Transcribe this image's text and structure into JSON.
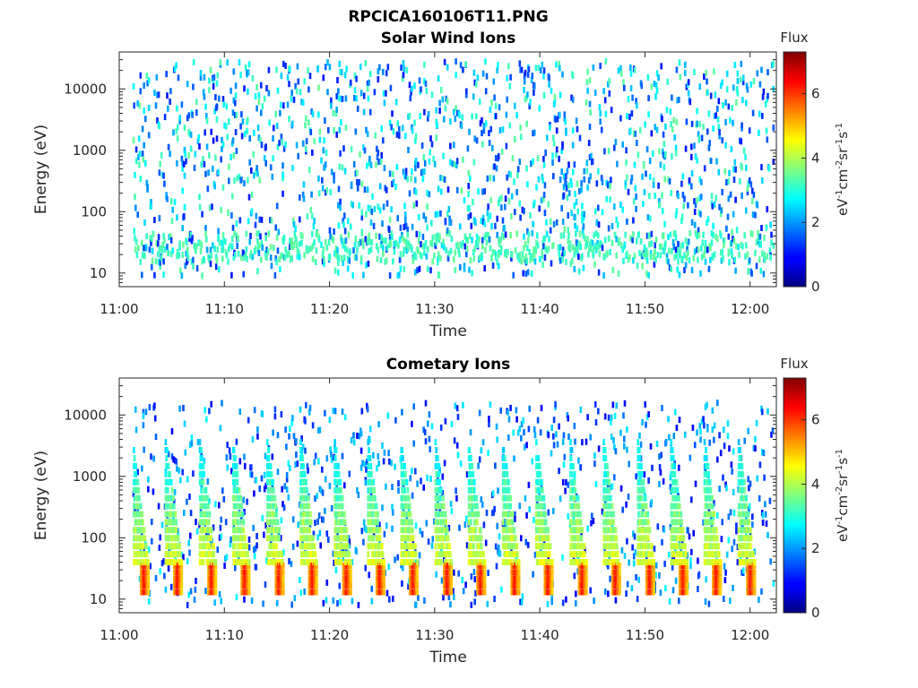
{
  "figure_title": "RPCICA160106T11.PNG",
  "chart_data": [
    {
      "type": "heatmap",
      "title": "Solar Wind Ions",
      "xlabel": "Time",
      "ylabel": "Energy (eV)",
      "y_scale": "log",
      "xlim": [
        "11:00:00",
        "12:02:30"
      ],
      "ylim": [
        6,
        40000
      ],
      "x_ticks": [
        "11:00",
        "11:10",
        "11:20",
        "11:30",
        "11:40",
        "11:50",
        "12:00"
      ],
      "y_ticks": [
        10,
        100,
        1000,
        10000
      ],
      "y_tick_labels": [
        "10",
        "100",
        "1000",
        "10000"
      ],
      "data_time_range": [
        "11:01:15",
        "12:02:10"
      ],
      "colorbar": {
        "label": "Flux",
        "units": "eV-1cm-2sr-1s-1",
        "range": [
          0,
          7.3
        ],
        "ticks": [
          0,
          2,
          4,
          6
        ],
        "colormap": "jet"
      },
      "description_values": {
        "sparse_flux_range": [
          1,
          3.5
        ],
        "dense_band_energy_eV": [
          15,
          45
        ],
        "dense_band_flux": [
          3,
          3.5
        ],
        "scatter_energy_range_eV": [
          8,
          35000
        ]
      }
    },
    {
      "type": "heatmap",
      "title": "Cometary Ions",
      "xlabel": "Time",
      "ylabel": "Energy (eV)",
      "y_scale": "log",
      "xlim": [
        "11:00:00",
        "12:02:30"
      ],
      "ylim": [
        6,
        40000
      ],
      "x_ticks": [
        "11:00",
        "11:10",
        "11:20",
        "11:30",
        "11:40",
        "11:50",
        "12:00"
      ],
      "y_ticks": [
        10,
        100,
        1000,
        10000
      ],
      "y_tick_labels": [
        "10",
        "100",
        "1000",
        "10000"
      ],
      "data_time_range": [
        "11:01:15",
        "12:02:10"
      ],
      "colorbar": {
        "label": "Flux",
        "units": "eV-1cm-2sr-1s-1",
        "range": [
          0,
          7.3
        ],
        "ticks": [
          0,
          2,
          4,
          6
        ],
        "colormap": "jet"
      },
      "periodic_bursts": {
        "period_min": 3.2,
        "burst_peaks": [
          "11:02:15",
          "11:05:25",
          "11:08:40",
          "11:11:50",
          "11:15:05",
          "11:18:15",
          "11:21:30",
          "11:24:40",
          "11:27:50",
          "11:31:05",
          "11:34:15",
          "11:37:30",
          "11:40:40",
          "11:43:55",
          "11:47:05",
          "11:50:20",
          "11:53:30",
          "11:56:40",
          "11:59:55"
        ],
        "peak_energy_eV": [
          13,
          35
        ],
        "peak_flux": [
          5.5,
          6.2
        ],
        "tail_max_energy_eV": 4000,
        "tail_flux": [
          2,
          3
        ]
      }
    }
  ]
}
